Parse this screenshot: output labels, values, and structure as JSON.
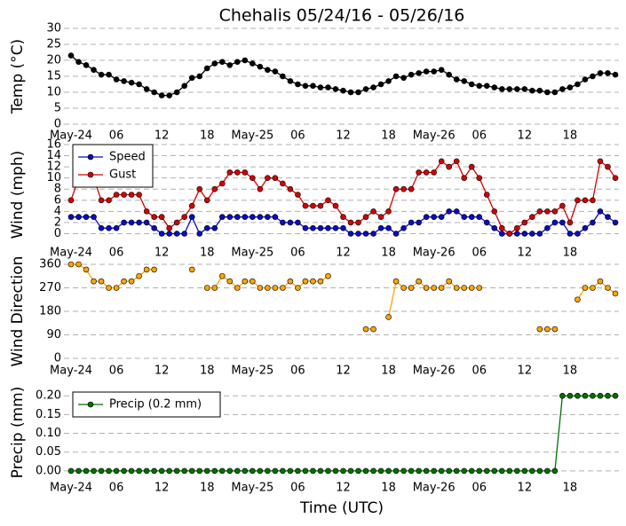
{
  "chart_data": [
    {
      "type": "line",
      "title": "Chehalis 05/24/16 - 05/26/16",
      "ylabel": "Temp (°C)",
      "categories": [
        "May-24",
        null,
        null,
        null,
        null,
        null,
        "06",
        null,
        null,
        null,
        null,
        null,
        "12",
        null,
        null,
        null,
        null,
        null,
        "18",
        null,
        null,
        null,
        null,
        null,
        "May-25",
        null,
        null,
        null,
        null,
        null,
        "06",
        null,
        null,
        null,
        null,
        null,
        "12",
        null,
        null,
        null,
        null,
        null,
        "18",
        null,
        null,
        null,
        null,
        null,
        "May-26",
        null,
        null,
        null,
        null,
        null,
        "06",
        null,
        null,
        null,
        null,
        null,
        "12",
        null,
        null,
        null,
        null,
        null,
        "18",
        null,
        null,
        null,
        null,
        null,
        null
      ],
      "series": [
        {
          "color": "#000000",
          "values": [
            21.5,
            19.5,
            18.5,
            17,
            15.5,
            15.5,
            14,
            13.5,
            13,
            12.5,
            11,
            10,
            9,
            9,
            10,
            12,
            14.5,
            15,
            17.5,
            19,
            19.5,
            18.5,
            19.5,
            20,
            19,
            18,
            17,
            16.5,
            15,
            13.5,
            12.5,
            12,
            12,
            11.5,
            11.5,
            11,
            10.5,
            10,
            10,
            11,
            11.5,
            12.5,
            13.5,
            15,
            14.5,
            15.5,
            16,
            16.5,
            16.5,
            17,
            15.5,
            14,
            13.5,
            12.5,
            12,
            12,
            11.5,
            11,
            11,
            11,
            11,
            10.5,
            10.5,
            10,
            10,
            11,
            11.5,
            12.5,
            14,
            15,
            16,
            16,
            15.5
          ]
        }
      ],
      "ylim": [
        0,
        30
      ],
      "yticks": [
        0,
        5,
        10,
        15,
        20,
        25,
        30
      ],
      "grid": true
    },
    {
      "type": "line",
      "ylabel": "Wind (mph)",
      "legend": "upper left",
      "categories": [
        "May-24",
        null,
        null,
        null,
        null,
        null,
        "06",
        null,
        null,
        null,
        null,
        null,
        "12",
        null,
        null,
        null,
        null,
        null,
        "18",
        null,
        null,
        null,
        null,
        null,
        "May-25",
        null,
        null,
        null,
        null,
        null,
        "06",
        null,
        null,
        null,
        null,
        null,
        "12",
        null,
        null,
        null,
        null,
        null,
        "18",
        null,
        null,
        null,
        null,
        null,
        "May-26",
        null,
        null,
        null,
        null,
        null,
        "06",
        null,
        null,
        null,
        null,
        null,
        "12",
        null,
        null,
        null,
        null,
        null,
        "18",
        null,
        null,
        null,
        null,
        null,
        null
      ],
      "series": [
        {
          "name": "Speed",
          "color": "#0a0ac8",
          "values": [
            3,
            3,
            3,
            3,
            1,
            1,
            1,
            2,
            2,
            2,
            2,
            1,
            0,
            0,
            0,
            0,
            3,
            0,
            1,
            1,
            3,
            3,
            3,
            3,
            3,
            3,
            3,
            3,
            2,
            2,
            2,
            1,
            1,
            1,
            1,
            1,
            1,
            0,
            0,
            0,
            0,
            1,
            1,
            0,
            1,
            2,
            2,
            3,
            3,
            3,
            4,
            4,
            3,
            3,
            3,
            2,
            1,
            0,
            0,
            0,
            0,
            0,
            0,
            1,
            2,
            2,
            0,
            0,
            1,
            2,
            4,
            3,
            2
          ]
        },
        {
          "name": "Gust",
          "color": "#d40000",
          "values": [
            6,
            10,
            10,
            10,
            6,
            6,
            7,
            7,
            7,
            7,
            4,
            3,
            3,
            1,
            2,
            3,
            5,
            8,
            6,
            8,
            9,
            11,
            11,
            11,
            10,
            8,
            10,
            10,
            9,
            8,
            7,
            5,
            5,
            5,
            6,
            5,
            3,
            2,
            2,
            3,
            4,
            3,
            4,
            8,
            8,
            8,
            11,
            11,
            11,
            13,
            12,
            13,
            10,
            12,
            10,
            7,
            4,
            1,
            0,
            1,
            2,
            3,
            4,
            4,
            4,
            5,
            2,
            6,
            6,
            6,
            13,
            12,
            10
          ]
        }
      ],
      "ylim": [
        -2,
        16
      ],
      "yticks": [
        0,
        2,
        4,
        6,
        8,
        10,
        12,
        14,
        16
      ],
      "grid": true
    },
    {
      "type": "line",
      "ylabel": "Wind Direction",
      "categories": [
        "May-24",
        null,
        null,
        null,
        null,
        null,
        "06",
        null,
        null,
        null,
        null,
        null,
        "12",
        null,
        null,
        null,
        null,
        null,
        "18",
        null,
        null,
        null,
        null,
        null,
        "May-25",
        null,
        null,
        null,
        null,
        null,
        "06",
        null,
        null,
        null,
        null,
        null,
        "12",
        null,
        null,
        null,
        null,
        null,
        "18",
        null,
        null,
        null,
        null,
        null,
        "May-26",
        null,
        null,
        null,
        null,
        null,
        "06",
        null,
        null,
        null,
        null,
        null,
        "12",
        null,
        null,
        null,
        null,
        null,
        "18",
        null,
        null,
        null,
        null,
        null,
        null
      ],
      "series": [
        {
          "color": "#ffa500",
          "values": [
            360,
            360,
            340,
            295,
            295,
            270,
            270,
            295,
            295,
            315,
            340,
            340,
            null,
            null,
            null,
            null,
            340,
            null,
            270,
            270,
            315,
            295,
            270,
            295,
            295,
            270,
            270,
            270,
            270,
            295,
            270,
            295,
            295,
            295,
            315,
            null,
            null,
            null,
            null,
            112,
            112,
            null,
            158,
            295,
            270,
            270,
            295,
            270,
            270,
            270,
            295,
            270,
            270,
            270,
            270,
            null,
            null,
            null,
            null,
            null,
            null,
            null,
            112,
            112,
            112,
            null,
            null,
            225,
            270,
            270,
            295,
            270,
            248
          ]
        }
      ],
      "ylim": [
        0,
        360
      ],
      "yticks": [
        0,
        90,
        180,
        270,
        360
      ],
      "grid": true
    },
    {
      "type": "line",
      "ylabel": "Precip (mm)",
      "xlabel": "Time (UTC)",
      "legend": "upper left",
      "categories": [
        "May-24",
        null,
        null,
        null,
        null,
        null,
        "06",
        null,
        null,
        null,
        null,
        null,
        "12",
        null,
        null,
        null,
        null,
        null,
        "18",
        null,
        null,
        null,
        null,
        null,
        "May-25",
        null,
        null,
        null,
        null,
        null,
        "06",
        null,
        null,
        null,
        null,
        null,
        "12",
        null,
        null,
        null,
        null,
        null,
        "18",
        null,
        null,
        null,
        null,
        null,
        "May-26",
        null,
        null,
        null,
        null,
        null,
        "06",
        null,
        null,
        null,
        null,
        null,
        "12",
        null,
        null,
        null,
        null,
        null,
        "18",
        null,
        null,
        null,
        null,
        null,
        null
      ],
      "series": [
        {
          "name": "Precip (0.2 mm)",
          "color": "#007000",
          "values": [
            0,
            0,
            0,
            0,
            0,
            0,
            0,
            0,
            0,
            0,
            0,
            0,
            0,
            0,
            0,
            0,
            0,
            0,
            0,
            0,
            0,
            0,
            0,
            0,
            0,
            0,
            0,
            0,
            0,
            0,
            0,
            0,
            0,
            0,
            0,
            0,
            0,
            0,
            0,
            0,
            0,
            0,
            0,
            0,
            0,
            0,
            0,
            0,
            0,
            0,
            0,
            0,
            0,
            0,
            0,
            0,
            0,
            0,
            0,
            0,
            0,
            0,
            0,
            0,
            0,
            0.2,
            0.2,
            0.2,
            0.2,
            0.2,
            0.2,
            0.2,
            0.2
          ]
        }
      ],
      "ylim": [
        -0.005,
        0.21
      ],
      "yticks": [
        {
          "value": 0,
          "label": "0.00"
        },
        {
          "value": 0.05,
          "label": "0.05"
        },
        {
          "value": 0.1,
          "label": "0.10"
        },
        {
          "value": 0.15,
          "label": "0.15"
        },
        {
          "value": 0.2,
          "label": "0.20"
        }
      ],
      "grid": true
    }
  ]
}
